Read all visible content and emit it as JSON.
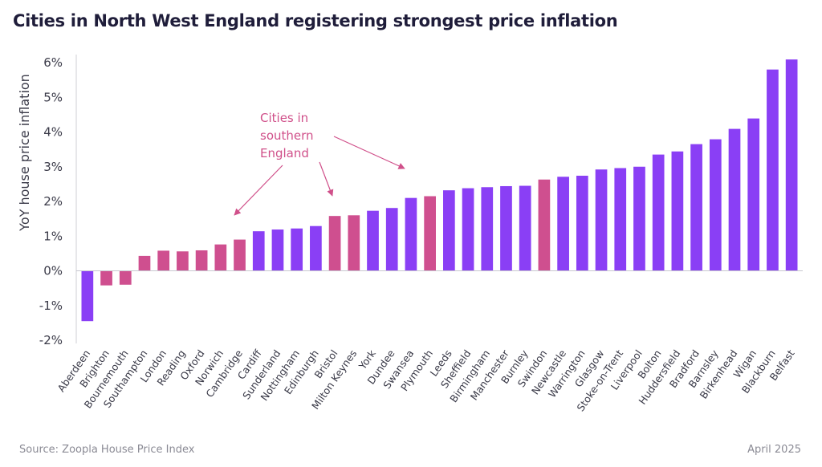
{
  "chart_data": {
    "type": "bar",
    "title": "Cities in North West England registering strongest price inflation",
    "ylabel": "YoY house price inflation",
    "xlabel": "",
    "ylim": [
      -2,
      6
    ],
    "yticks": [
      -2,
      -1,
      0,
      1,
      2,
      3,
      4,
      5,
      6
    ],
    "ytick_labels": [
      "-2%",
      "-1%",
      "0%",
      "1%",
      "2%",
      "3%",
      "4%",
      "5%",
      "6%"
    ],
    "grid": false,
    "categories": [
      "Aberdeen",
      "Brighton",
      "Bournemouth",
      "Southampton",
      "London",
      "Reading",
      "Oxford",
      "Norwich",
      "Cambridge",
      "Cardiff",
      "Sunderland",
      "Nottingham",
      "Edinburgh",
      "Bristol",
      "Milton Keynes",
      "York",
      "Dundee",
      "Swansea",
      "Plymouth",
      "Leeds",
      "Sheffield",
      "Birmingham",
      "Manchester",
      "Burnley",
      "Swindon",
      "Newcastle",
      "Warrington",
      "Glasgow",
      "Stoke-on-Trent",
      "Liverpool",
      "Bolton",
      "Huddersfield",
      "Bradford",
      "Barnsley",
      "Birkenhead",
      "Wigan",
      "Blackburn",
      "Belfast"
    ],
    "values": [
      -1.45,
      -0.42,
      -0.4,
      0.43,
      0.58,
      0.56,
      0.59,
      0.76,
      0.9,
      1.14,
      1.19,
      1.22,
      1.29,
      1.58,
      1.6,
      1.73,
      1.81,
      2.1,
      2.15,
      2.32,
      2.38,
      2.41,
      2.44,
      2.45,
      2.63,
      2.71,
      2.74,
      2.92,
      2.96,
      3.0,
      3.35,
      3.44,
      3.65,
      3.79,
      4.09,
      4.39,
      5.8,
      6.09
    ],
    "highlight": [
      false,
      true,
      true,
      true,
      true,
      true,
      true,
      true,
      true,
      false,
      false,
      false,
      false,
      true,
      true,
      false,
      false,
      false,
      true,
      false,
      false,
      false,
      false,
      false,
      true,
      false,
      false,
      false,
      false,
      false,
      false,
      false,
      false,
      false,
      false,
      false,
      false,
      false
    ],
    "colors": {
      "default": "#8a3ff5",
      "highlight": "#cf4f8f"
    },
    "annotation": {
      "lines": [
        "Cities in",
        "southern",
        "England"
      ]
    }
  },
  "footer": {
    "source": "Source: Zoopla House Price Index",
    "date": "April 2025"
  }
}
